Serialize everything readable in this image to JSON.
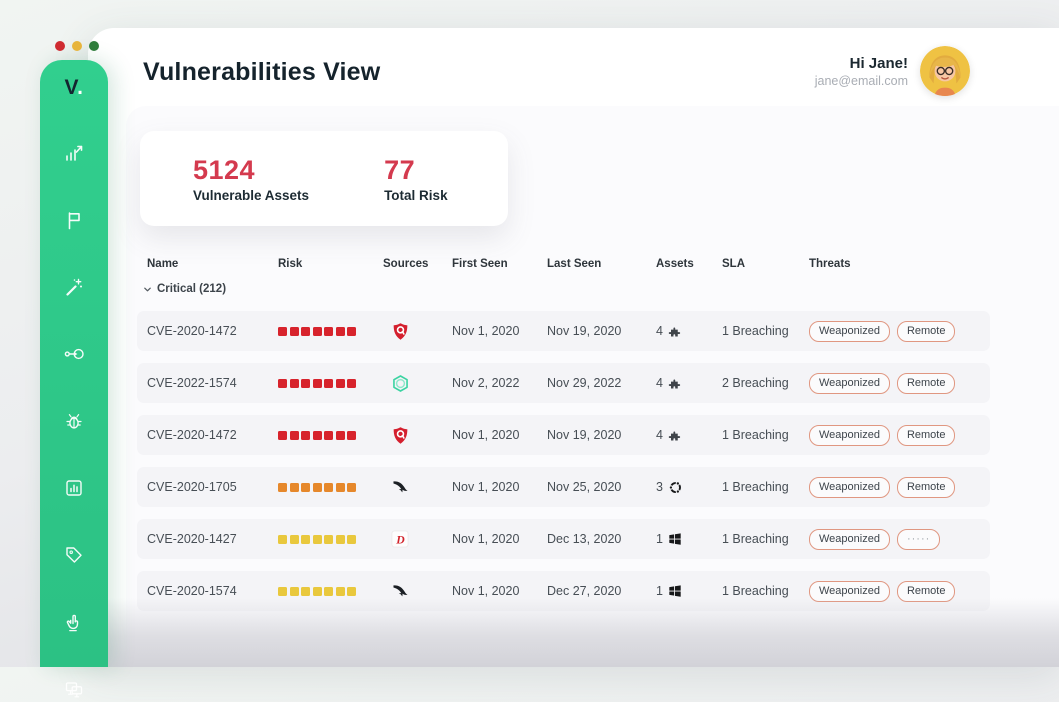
{
  "colors": {
    "sidebar_green": "#2fca8b",
    "accent_red": "#d43a4e",
    "risk_red": "#d7232c",
    "risk_orange": "#e6882b",
    "risk_yellow": "#e9c83d",
    "badge_border": "#e09781",
    "dot_close": "#cf2b31",
    "dot_minimize": "#e7b43c",
    "dot_zoom": "#2f7d3b"
  },
  "window": {
    "controls": [
      {
        "name": "close",
        "color": "#cf2b31"
      },
      {
        "name": "minimize",
        "color": "#e7b43c"
      },
      {
        "name": "zoom",
        "color": "#2f7d3b"
      }
    ]
  },
  "sidebar": {
    "logo": "V",
    "logo_dot": ".",
    "items": [
      {
        "icon": "trending-chart"
      },
      {
        "icon": "flag"
      },
      {
        "icon": "magic-wand"
      },
      {
        "icon": "connect-login"
      },
      {
        "icon": "bug"
      },
      {
        "icon": "chart-box"
      },
      {
        "icon": "tag"
      },
      {
        "icon": "hand-raise"
      },
      {
        "icon": "monitors"
      }
    ]
  },
  "header": {
    "title": "Vulnerabilities View",
    "greeting": "Hi Jane!",
    "email": "jane@email.com"
  },
  "stats": [
    {
      "value": "5124",
      "label": "Vulnerable Assets"
    },
    {
      "value": "77",
      "label": "Total Risk"
    }
  ],
  "table": {
    "columns": [
      {
        "key": "name",
        "label": "Name"
      },
      {
        "key": "risk",
        "label": "Risk"
      },
      {
        "key": "sources",
        "label": "Sources"
      },
      {
        "key": "first",
        "label": "First Seen"
      },
      {
        "key": "last",
        "label": "Last Seen"
      },
      {
        "key": "assets",
        "label": "Assets"
      },
      {
        "key": "sla",
        "label": "SLA"
      },
      {
        "key": "threats",
        "label": "Threats"
      }
    ],
    "group": {
      "label": "Critical (212)",
      "expanded": true
    },
    "rows": [
      {
        "name": "CVE-2020-1472",
        "risk": {
          "count": 7,
          "level": "red"
        },
        "source_icon": "qualys-shield",
        "first_seen": "Nov 1, 2020",
        "last_seen": "Nov 19, 2020",
        "assets": {
          "count": "4",
          "icon": "puzzle"
        },
        "sla": "1 Breaching",
        "threats": [
          "Weaponized",
          "Remote"
        ]
      },
      {
        "name": "CVE-2022-1574",
        "risk": {
          "count": 7,
          "level": "red"
        },
        "source_icon": "green-ring",
        "first_seen": "Nov 2, 2022",
        "last_seen": "Nov 29, 2022",
        "assets": {
          "count": "4",
          "icon": "puzzle"
        },
        "sla": "2 Breaching",
        "threats": [
          "Weaponized",
          "Remote"
        ]
      },
      {
        "name": "CVE-2020-1472",
        "risk": {
          "count": 7,
          "level": "red"
        },
        "source_icon": "qualys-shield",
        "first_seen": "Nov 1, 2020",
        "last_seen": "Nov 19, 2020",
        "assets": {
          "count": "4",
          "icon": "puzzle"
        },
        "sla": "1 Breaching",
        "threats": [
          "Weaponized",
          "Remote"
        ]
      },
      {
        "name": "CVE-2020-1705",
        "risk": {
          "count": 7,
          "level": "orange"
        },
        "source_icon": "falcon",
        "first_seen": "Nov 1, 2020",
        "last_seen": "Nov 25, 2020",
        "assets": {
          "count": "3",
          "icon": "ubuntu"
        },
        "sla": "1 Breaching",
        "threats": [
          "Weaponized",
          "Remote"
        ]
      },
      {
        "name": "CVE-2020-1427",
        "risk": {
          "count": 7,
          "level": "yellow"
        },
        "source_icon": "d-logo",
        "first_seen": "Nov 1, 2020",
        "last_seen": "Dec 13, 2020",
        "assets": {
          "count": "1",
          "icon": "windows"
        },
        "sla": "1 Breaching",
        "threats": [
          "Weaponized",
          "·····"
        ]
      },
      {
        "name": "CVE-2020-1574",
        "risk": {
          "count": 7,
          "level": "yellow"
        },
        "source_icon": "falcon",
        "first_seen": "Nov 1, 2020",
        "last_seen": "Dec 27, 2020",
        "assets": {
          "count": "1",
          "icon": "windows"
        },
        "sla": "1 Breaching",
        "threats": [
          "Weaponized",
          "Remote"
        ]
      }
    ]
  }
}
